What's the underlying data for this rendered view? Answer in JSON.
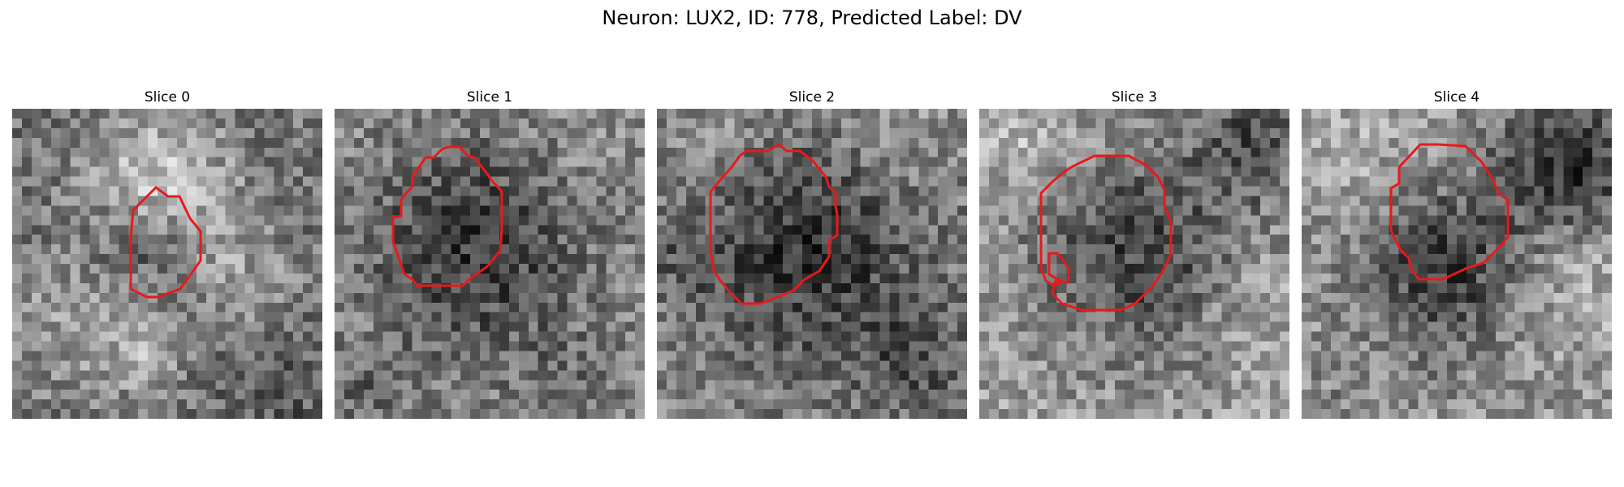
{
  "figure": {
    "title": "Neuron: LUX2, ID: 778, Predicted Label: DV",
    "contour_color": "#e8191b",
    "panels": [
      {
        "title": "Slice 0"
      },
      {
        "title": "Slice 1"
      },
      {
        "title": "Slice 2"
      },
      {
        "title": "Slice 3"
      },
      {
        "title": "Slice 4"
      }
    ]
  }
}
